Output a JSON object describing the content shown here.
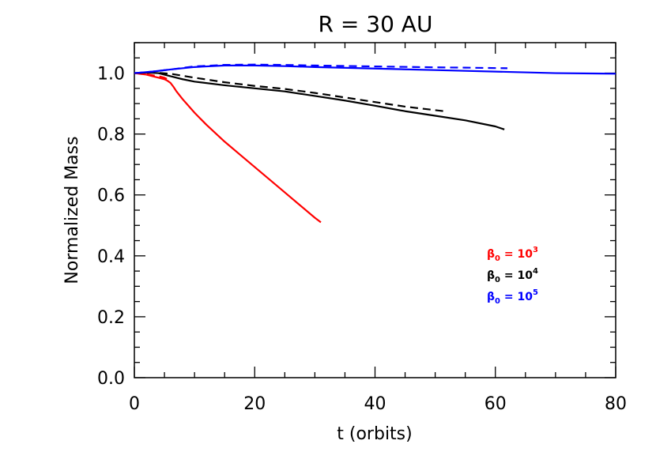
{
  "chart_data": {
    "type": "line",
    "title": "R = 30 AU",
    "xlabel": "t (orbits)",
    "ylabel": "Normalized Mass",
    "xlim": [
      0,
      80
    ],
    "ylim": [
      0,
      1.1
    ],
    "x_ticks": [
      0,
      20,
      40,
      60,
      80
    ],
    "x_tick_labels": [
      "0",
      "20",
      "40",
      "60",
      "80"
    ],
    "y_ticks": [
      0.0,
      0.2,
      0.4,
      0.6,
      0.8,
      1.0
    ],
    "y_tick_labels": [
      "0.0",
      "0.2",
      "0.4",
      "0.6",
      "0.8",
      "1.0"
    ],
    "x_minor_step": 5,
    "y_minor_step": 0.05,
    "grid": false,
    "legend_position": "lower-right",
    "series": [
      {
        "name": "β0 = 10^3",
        "color": "#ff0000",
        "style": "solid",
        "x": [
          0,
          2,
          3,
          4,
          5,
          5.5,
          6,
          6.5,
          7,
          8,
          10,
          12,
          15,
          18,
          21,
          24,
          27,
          30,
          31
        ],
        "y": [
          1.0,
          0.995,
          0.99,
          0.985,
          0.98,
          0.975,
          0.968,
          0.955,
          0.94,
          0.915,
          0.87,
          0.83,
          0.775,
          0.725,
          0.675,
          0.625,
          0.575,
          0.525,
          0.51
        ]
      },
      {
        "name": "β0 = 10^3 dashed",
        "color": "#ff0000",
        "style": "dashed",
        "x": [
          0,
          2,
          3,
          4,
          5,
          5.5
        ],
        "y": [
          1.0,
          0.997,
          0.993,
          0.99,
          0.985,
          0.98
        ]
      },
      {
        "name": "β0 = 10^4",
        "color": "#000000",
        "style": "solid",
        "x": [
          0,
          2,
          4,
          6,
          8,
          10,
          15,
          20,
          25,
          30,
          35,
          40,
          45,
          50,
          55,
          60,
          61.5
        ],
        "y": [
          1.0,
          1.002,
          1.0,
          0.99,
          0.98,
          0.972,
          0.96,
          0.95,
          0.94,
          0.925,
          0.91,
          0.893,
          0.875,
          0.86,
          0.845,
          0.825,
          0.815
        ]
      },
      {
        "name": "β0 = 10^4 dashed",
        "color": "#000000",
        "style": "dashed",
        "x": [
          0,
          3,
          6,
          10,
          15,
          20,
          25,
          30,
          35,
          40,
          45,
          51.5
        ],
        "y": [
          1.0,
          1.002,
          0.998,
          0.985,
          0.97,
          0.958,
          0.948,
          0.935,
          0.92,
          0.905,
          0.89,
          0.875
        ]
      },
      {
        "name": "β0 = 10^5",
        "color": "#0000ff",
        "style": "solid",
        "x": [
          0,
          3,
          6,
          10,
          15,
          20,
          25,
          30,
          40,
          50,
          60,
          70,
          80
        ],
        "y": [
          1.0,
          1.005,
          1.012,
          1.02,
          1.025,
          1.025,
          1.023,
          1.02,
          1.015,
          1.01,
          1.005,
          1.0,
          0.998
        ]
      },
      {
        "name": "β0 = 10^5 dashed",
        "color": "#0000ff",
        "style": "dashed",
        "x": [
          0,
          3,
          6,
          10,
          15,
          20,
          25,
          30,
          40,
          50,
          55,
          62
        ],
        "y": [
          1.0,
          1.005,
          1.012,
          1.022,
          1.027,
          1.028,
          1.027,
          1.025,
          1.022,
          1.019,
          1.018,
          1.016
        ]
      }
    ],
    "legend": [
      {
        "base": "β",
        "sub": "0",
        "eq": " = 10",
        "sup": "3",
        "color": "#ff0000"
      },
      {
        "base": "β",
        "sub": "0",
        "eq": " = 10",
        "sup": "4",
        "color": "#000000"
      },
      {
        "base": "β",
        "sub": "0",
        "eq": " = 10",
        "sup": "5",
        "color": "#0000ff"
      }
    ]
  }
}
